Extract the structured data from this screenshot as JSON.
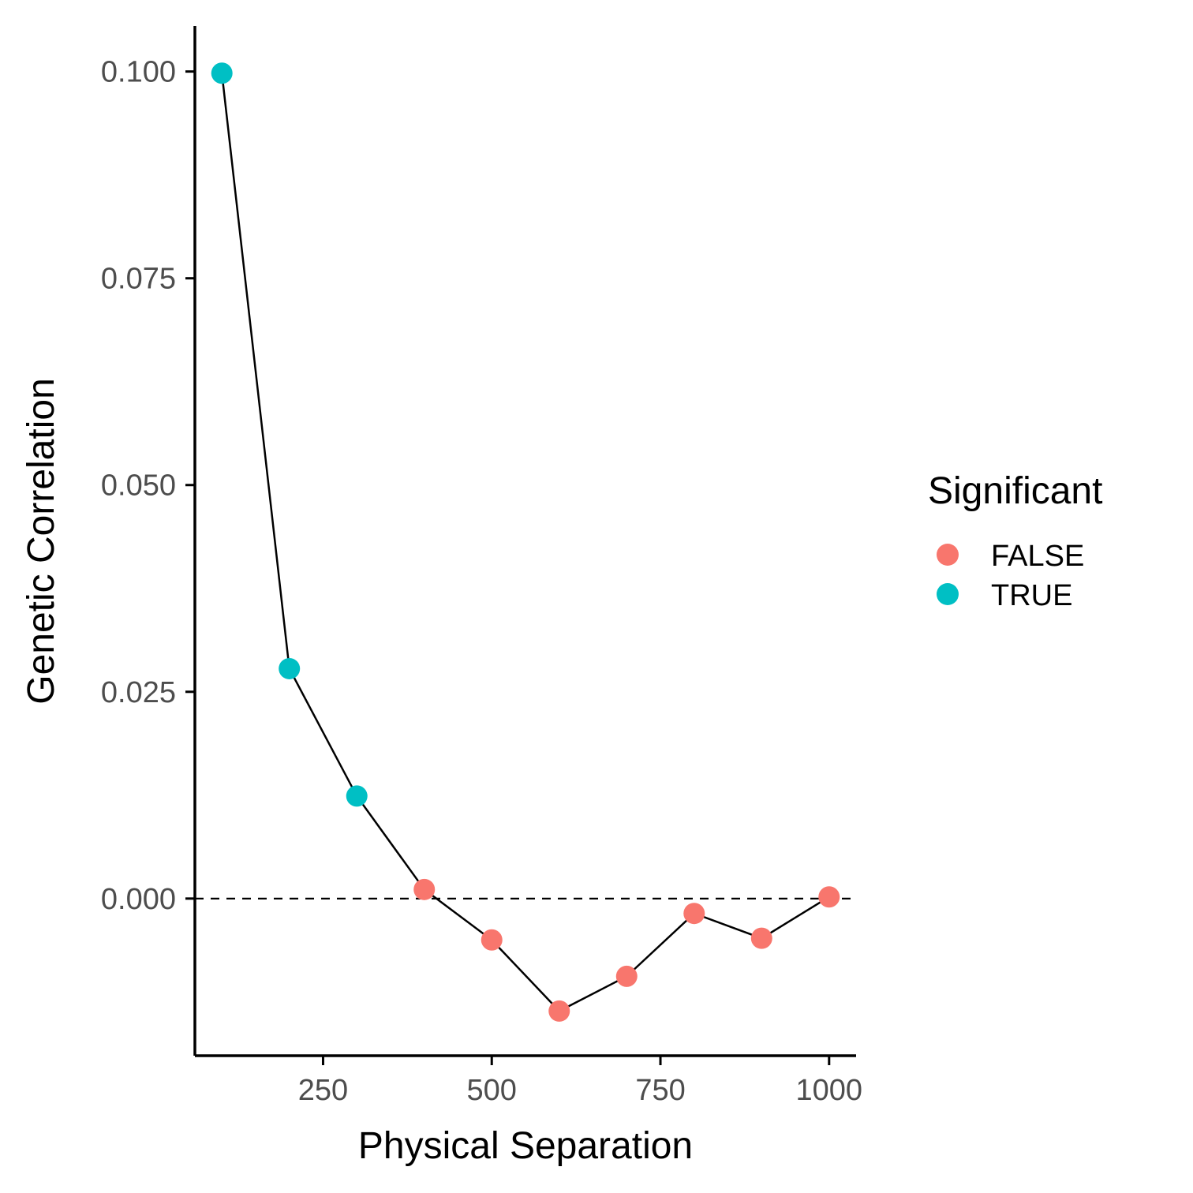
{
  "chart_data": {
    "type": "scatter",
    "xlabel": "Physical Separation",
    "ylabel": "Genetic Correlation",
    "xlim": [
      60,
      1040
    ],
    "ylim": [
      -0.019,
      0.1055
    ],
    "x_ticks": [
      250,
      500,
      750,
      1000
    ],
    "x_tick_labels": [
      "250",
      "500",
      "750",
      "1000"
    ],
    "y_ticks": [
      0.0,
      0.025,
      0.05,
      0.075,
      0.1
    ],
    "y_tick_labels": [
      "0.000",
      "0.025",
      "0.050",
      "0.075",
      "0.100"
    ],
    "grid": false,
    "reference_line": {
      "y": 0,
      "style": "dashed"
    },
    "connecting_line": true,
    "legend": {
      "title": "Significant",
      "position": "right",
      "entries": [
        {
          "label": "FALSE",
          "color": "#F8766D"
        },
        {
          "label": "TRUE",
          "color": "#00BFC4"
        }
      ]
    },
    "points": [
      {
        "x": 100,
        "y": 0.0998,
        "significant": "TRUE"
      },
      {
        "x": 200,
        "y": 0.0278,
        "significant": "TRUE"
      },
      {
        "x": 300,
        "y": 0.0124,
        "significant": "TRUE"
      },
      {
        "x": 400,
        "y": 0.0011,
        "significant": "FALSE"
      },
      {
        "x": 500,
        "y": -0.005,
        "significant": "FALSE"
      },
      {
        "x": 600,
        "y": -0.0136,
        "significant": "FALSE"
      },
      {
        "x": 700,
        "y": -0.0094,
        "significant": "FALSE"
      },
      {
        "x": 800,
        "y": -0.0018,
        "significant": "FALSE"
      },
      {
        "x": 900,
        "y": -0.0048,
        "significant": "FALSE"
      },
      {
        "x": 1000,
        "y": 0.0002,
        "significant": "FALSE"
      }
    ]
  }
}
